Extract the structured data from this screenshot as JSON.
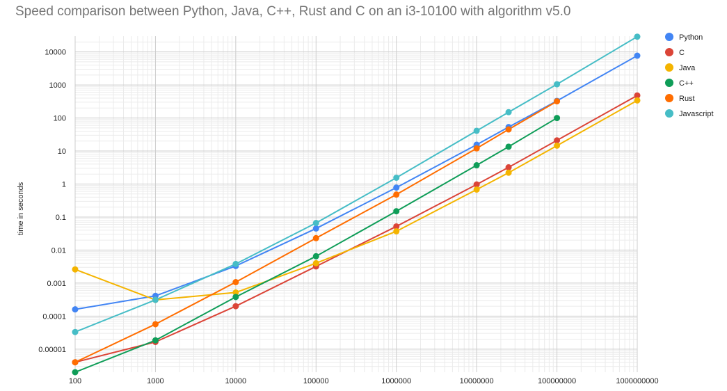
{
  "chart_data": {
    "type": "line",
    "title": "Speed comparison between Python, Java, C++, Rust and C on an i3-10100 with algorithm v5.0",
    "xlabel": "",
    "ylabel": "time in seconds",
    "x_scale": "log",
    "y_scale": "log",
    "xlim": [
      100,
      1000000000
    ],
    "ylim": [
      2e-06,
      30000
    ],
    "grid": true,
    "legend_position": "right",
    "x_tick_labels": [
      "100",
      "1000",
      "10000",
      "100000",
      "1000000",
      "10000000",
      "100000000",
      "1000000000"
    ],
    "y_tick_labels": [
      "0.00001",
      "0.0001",
      "0.001",
      "0.01",
      "0.1",
      "1",
      "10",
      "100",
      "1000",
      "10000"
    ],
    "x_ticks": [
      100,
      1000,
      10000,
      100000,
      1000000,
      10000000,
      100000000,
      1000000000
    ],
    "y_ticks": [
      1e-05,
      0.0001,
      0.001,
      0.01,
      0.1,
      1,
      10,
      100,
      1000,
      10000
    ],
    "series": [
      {
        "name": "Python",
        "color": "#4285f4",
        "x": [
          100,
          1000,
          10000,
          100000,
          1000000,
          10000000,
          25000000,
          100000000,
          1000000000
        ],
        "y": [
          0.00016,
          0.00041,
          0.0033,
          0.045,
          0.78,
          15.5,
          53,
          330,
          7700
        ]
      },
      {
        "name": "C",
        "color": "#db4437",
        "x": [
          100,
          1000,
          10000,
          100000,
          1000000,
          10000000,
          25000000,
          100000000,
          1000000000
        ],
        "y": [
          4e-06,
          1.65e-05,
          0.0002,
          0.0032,
          0.052,
          0.97,
          3.2,
          21,
          480
        ]
      },
      {
        "name": "Java",
        "color": "#f4b400",
        "x": [
          100,
          1000,
          10000,
          100000,
          1000000,
          10000000,
          25000000,
          100000000,
          1000000000
        ],
        "y": [
          0.0026,
          0.00031,
          0.00052,
          0.004,
          0.037,
          0.68,
          2.2,
          14.5,
          340
        ]
      },
      {
        "name": "C++",
        "color": "#0f9d58",
        "x": [
          100,
          1000,
          10000,
          100000,
          1000000,
          10000000,
          25000000,
          100000000
        ],
        "y": [
          2e-06,
          1.85e-05,
          0.00038,
          0.0065,
          0.15,
          3.7,
          13.5,
          100
        ]
      },
      {
        "name": "Rust",
        "color": "#ff6d00",
        "x": [
          100,
          1000,
          10000,
          100000,
          1000000,
          10000000,
          25000000,
          100000000
        ],
        "y": [
          4e-06,
          5.7e-05,
          0.00107,
          0.023,
          0.48,
          12,
          45,
          320
        ]
      },
      {
        "name": "Javascript",
        "color": "#46bdc6",
        "x": [
          100,
          1000,
          10000,
          100000,
          1000000,
          10000000,
          25000000,
          100000000,
          1000000000
        ],
        "y": [
          3.3e-05,
          0.00031,
          0.0038,
          0.066,
          1.55,
          41,
          150,
          1050,
          29000
        ]
      }
    ]
  }
}
